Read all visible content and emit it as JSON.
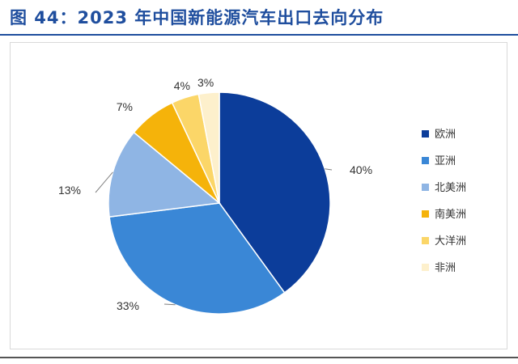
{
  "header": {
    "title": "图 44：2023 年中国新能源汽车出口去向分布"
  },
  "chart_data": {
    "type": "pie",
    "title": "图 44：2023 年中国新能源汽车出口去向分布",
    "categories": [
      "欧洲",
      "亚洲",
      "北美洲",
      "南美洲",
      "大洋洲",
      "非洲"
    ],
    "values": [
      40,
      33,
      13,
      7,
      4,
      3
    ],
    "labels": [
      "40%",
      "33%",
      "13%",
      "7%",
      "4%",
      "3%"
    ],
    "colors": [
      "#0c3d9a",
      "#3a87d6",
      "#8fb5e4",
      "#f5b30a",
      "#fbd668",
      "#fdf0cc"
    ],
    "legend_position": "right"
  }
}
